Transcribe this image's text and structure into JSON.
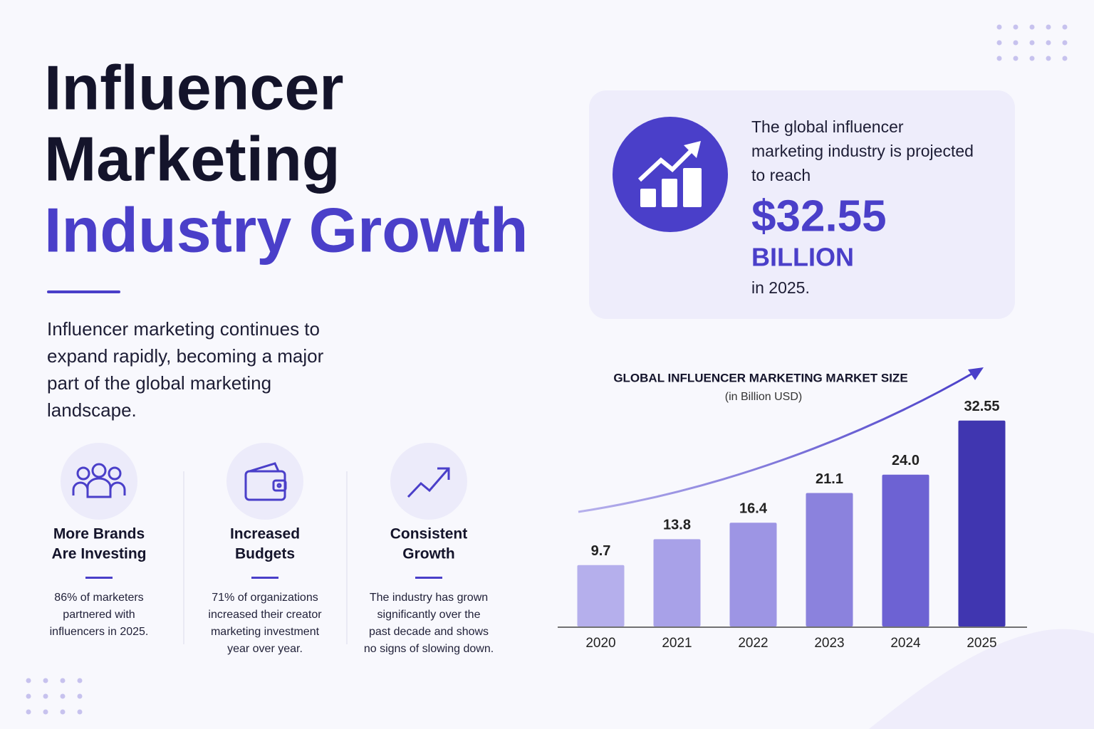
{
  "header": {
    "title_lines": [
      "Influencer",
      "Marketing",
      "Industry Growth"
    ],
    "intro_lines": [
      "Influencer marketing continues to",
      "expand rapidly, becoming a major",
      "part of the global marketing",
      "landscape."
    ]
  },
  "callout": {
    "text_lines": [
      "The global influencer",
      "marketing industry is projected",
      "to reach"
    ],
    "amount": "$32.55",
    "unit": "BILLION",
    "year_text": "in 2025."
  },
  "features": [
    {
      "title_lines": [
        "More Brands",
        "Are Investing"
      ],
      "text_lines": [
        "86% of marketers",
        "partnered with",
        "influencers in 2025."
      ]
    },
    {
      "title_lines": [
        "Increased",
        "Budgets"
      ],
      "text_lines": [
        "71% of organizations",
        "increased their creator",
        "marketing investment",
        "year over year."
      ]
    },
    {
      "title_lines": [
        "Consistent",
        "Growth"
      ],
      "text_lines": [
        "The industry has grown",
        "significantly over the",
        "past decade and shows",
        "no signs of slowing down."
      ]
    }
  ],
  "chart_data": {
    "type": "bar",
    "title": "GLOBAL INFLUENCER MARKETING MARKET SIZE",
    "subtitle": "(in Billion USD)",
    "categories": [
      "2020",
      "2021",
      "2022",
      "2023",
      "2024",
      "2025"
    ],
    "values": [
      9.7,
      13.8,
      16.4,
      21.1,
      24,
      32.55
    ],
    "value_labels": [
      "9.7",
      "13.8",
      "16.4",
      "21.1",
      "24.0",
      "32.55"
    ],
    "colors": [
      "#b5afec",
      "#a8a1e8",
      "#9d95e4",
      "#8b82dd",
      "#6d62d3",
      "#4036b0"
    ],
    "ylim": [
      0,
      35
    ]
  }
}
